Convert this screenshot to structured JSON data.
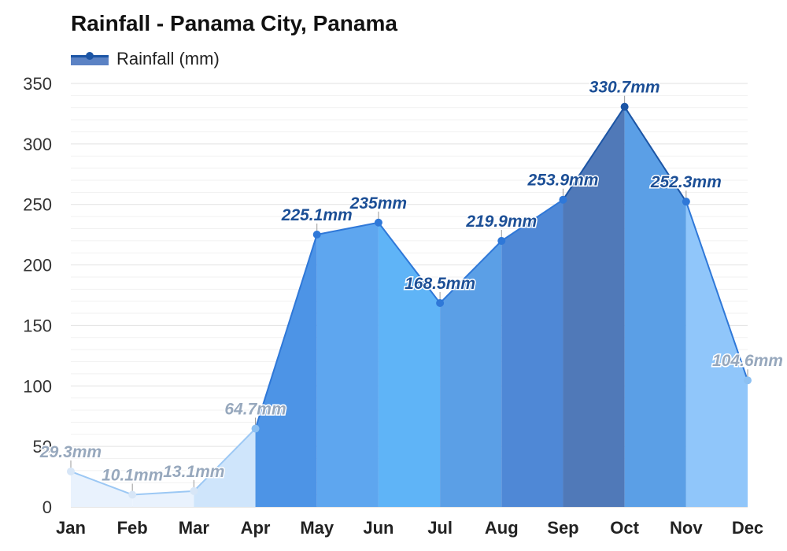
{
  "title": "Rainfall - Panama City, Panama",
  "legend": {
    "label": "Rainfall (mm)",
    "icon": "line-with-dot-and-area"
  },
  "chart_data": {
    "type": "area",
    "title": "Rainfall - Panama City, Panama",
    "xlabel": "",
    "ylabel": "",
    "categories": [
      "Jan",
      "Feb",
      "Mar",
      "Apr",
      "May",
      "Jun",
      "Jul",
      "Aug",
      "Sep",
      "Oct",
      "Nov",
      "Dec"
    ],
    "series": [
      {
        "name": "Rainfall (mm)",
        "values": [
          29.3,
          10.1,
          13.1,
          64.7,
          225.1,
          235,
          168.5,
          219.9,
          253.9,
          330.7,
          252.3,
          104.6
        ]
      }
    ],
    "data_labels": [
      "29.3mm",
      "10.1mm",
      "13.1mm",
      "64.7mm",
      "225.1mm",
      "235mm",
      "168.5mm",
      "219.9mm",
      "253.9mm",
      "330.7mm",
      "252.3mm",
      "104.6mm"
    ],
    "ylim": [
      0,
      350
    ],
    "yticks": [
      0,
      50,
      100,
      150,
      200,
      250,
      300,
      350
    ],
    "grid": true,
    "legend_position": "top-left",
    "segment_colors": [
      "#e9f2fd",
      "#e9f2fd",
      "#e9f2fd",
      "#cfe5fb",
      "#4d94e6",
      "#5ea6ef",
      "#5fb4f7",
      "#5b9fe6",
      "#4f88d6",
      "#5079b8",
      "#5b9fe6",
      "#90c6fa"
    ],
    "colors": {
      "line": "#1c55a5",
      "grid": "#e2e2e2",
      "light_label": "#97a8bd",
      "dark_label": "#1c4f96"
    }
  }
}
